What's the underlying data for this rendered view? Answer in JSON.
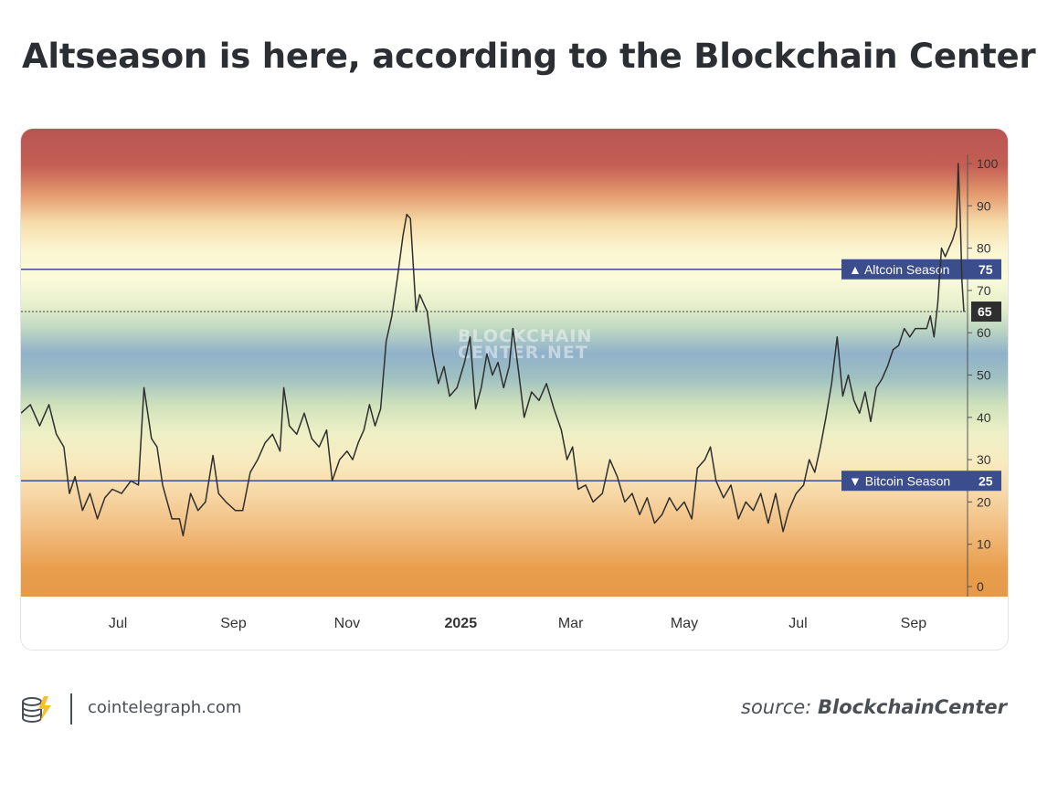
{
  "title": "Altseason is here, according to the Blockchain Center",
  "watermark": [
    "BLOCKCHAIN",
    "CENTER.NET"
  ],
  "footer": {
    "site": "cointelegraph.com",
    "source_prefix": "source:",
    "source_name": "BlockchainCenter"
  },
  "colors": {
    "line": "#2f2f2f",
    "threshold": "#3b4d8c",
    "label_bg": "#3b4d8c",
    "current_label_bg": "#2f2f2f"
  },
  "chart_data": {
    "type": "line",
    "title": "",
    "xlabel": "",
    "ylabel": "",
    "ylim": [
      0,
      100
    ],
    "yticks": [
      0,
      10,
      20,
      30,
      40,
      50,
      60,
      70,
      80,
      90,
      100
    ],
    "x_ticks": [
      {
        "label": "Jul",
        "x": "2024-07-01"
      },
      {
        "label": "Sep",
        "x": "2024-09-01"
      },
      {
        "label": "Nov",
        "x": "2024-11-01"
      },
      {
        "label": "2025",
        "x": "2025-01-01",
        "bold": true
      },
      {
        "label": "Mar",
        "x": "2025-03-01"
      },
      {
        "label": "May",
        "x": "2025-05-01"
      },
      {
        "label": "Jul",
        "x": "2025-07-01"
      },
      {
        "label": "Sep",
        "x": "2025-09-01"
      }
    ],
    "thresholds": [
      {
        "label": "▲ Altcoin Season",
        "value": 75
      },
      {
        "label": "▼ Bitcoin Season",
        "value": 25
      }
    ],
    "current": {
      "value": 65,
      "label": "65"
    },
    "legend": "none",
    "grid": false,
    "series": [
      {
        "points": [
          [
            "2024-05-10",
            41
          ],
          [
            "2024-05-15",
            43
          ],
          [
            "2024-05-20",
            38
          ],
          [
            "2024-05-25",
            43
          ],
          [
            "2024-05-29",
            36
          ],
          [
            "2024-06-02",
            33
          ],
          [
            "2024-06-05",
            22
          ],
          [
            "2024-06-08",
            26
          ],
          [
            "2024-06-12",
            18
          ],
          [
            "2024-06-16",
            22
          ],
          [
            "2024-06-20",
            16
          ],
          [
            "2024-06-24",
            21
          ],
          [
            "2024-06-28",
            23
          ],
          [
            "2024-07-03",
            22
          ],
          [
            "2024-07-08",
            25
          ],
          [
            "2024-07-12",
            24
          ],
          [
            "2024-07-15",
            47
          ],
          [
            "2024-07-19",
            35
          ],
          [
            "2024-07-22",
            33
          ],
          [
            "2024-07-25",
            24
          ],
          [
            "2024-07-30",
            16
          ],
          [
            "2024-08-03",
            16
          ],
          [
            "2024-08-05",
            12
          ],
          [
            "2024-08-09",
            22
          ],
          [
            "2024-08-13",
            18
          ],
          [
            "2024-08-17",
            20
          ],
          [
            "2024-08-21",
            31
          ],
          [
            "2024-08-24",
            22
          ],
          [
            "2024-08-28",
            20
          ],
          [
            "2024-09-02",
            18
          ],
          [
            "2024-09-06",
            18
          ],
          [
            "2024-09-10",
            27
          ],
          [
            "2024-09-14",
            30
          ],
          [
            "2024-09-18",
            34
          ],
          [
            "2024-09-22",
            36
          ],
          [
            "2024-09-26",
            32
          ],
          [
            "2024-09-28",
            47
          ],
          [
            "2024-10-01",
            38
          ],
          [
            "2024-10-05",
            36
          ],
          [
            "2024-10-09",
            41
          ],
          [
            "2024-10-13",
            35
          ],
          [
            "2024-10-17",
            33
          ],
          [
            "2024-10-21",
            37
          ],
          [
            "2024-10-24",
            25
          ],
          [
            "2024-10-28",
            30
          ],
          [
            "2024-11-01",
            32
          ],
          [
            "2024-11-04",
            30
          ],
          [
            "2024-11-07",
            34
          ],
          [
            "2024-11-10",
            37
          ],
          [
            "2024-11-13",
            43
          ],
          [
            "2024-11-16",
            38
          ],
          [
            "2024-11-19",
            42
          ],
          [
            "2024-11-22",
            58
          ],
          [
            "2024-11-25",
            64
          ],
          [
            "2024-11-28",
            73
          ],
          [
            "2024-12-01",
            83
          ],
          [
            "2024-12-03",
            88
          ],
          [
            "2024-12-05",
            87
          ],
          [
            "2024-12-08",
            65
          ],
          [
            "2024-12-10",
            69
          ],
          [
            "2024-12-14",
            65
          ],
          [
            "2024-12-17",
            55
          ],
          [
            "2024-12-20",
            48
          ],
          [
            "2024-12-23",
            52
          ],
          [
            "2024-12-26",
            45
          ],
          [
            "2024-12-30",
            47
          ],
          [
            "2025-01-03",
            53
          ],
          [
            "2025-01-06",
            59
          ],
          [
            "2025-01-09",
            42
          ],
          [
            "2025-01-12",
            47
          ],
          [
            "2025-01-15",
            55
          ],
          [
            "2025-01-18",
            50
          ],
          [
            "2025-01-21",
            53
          ],
          [
            "2025-01-24",
            47
          ],
          [
            "2025-01-27",
            52
          ],
          [
            "2025-01-29",
            61
          ],
          [
            "2025-02-01",
            51
          ],
          [
            "2025-02-04",
            40
          ],
          [
            "2025-02-08",
            46
          ],
          [
            "2025-02-12",
            44
          ],
          [
            "2025-02-16",
            48
          ],
          [
            "2025-02-20",
            42
          ],
          [
            "2025-02-24",
            37
          ],
          [
            "2025-02-27",
            30
          ],
          [
            "2025-03-02",
            33
          ],
          [
            "2025-03-05",
            23
          ],
          [
            "2025-03-09",
            24
          ],
          [
            "2025-03-13",
            20
          ],
          [
            "2025-03-18",
            22
          ],
          [
            "2025-03-22",
            30
          ],
          [
            "2025-03-26",
            26
          ],
          [
            "2025-03-30",
            20
          ],
          [
            "2025-04-03",
            22
          ],
          [
            "2025-04-07",
            17
          ],
          [
            "2025-04-11",
            21
          ],
          [
            "2025-04-15",
            15
          ],
          [
            "2025-04-19",
            17
          ],
          [
            "2025-04-23",
            21
          ],
          [
            "2025-04-27",
            18
          ],
          [
            "2025-05-01",
            20
          ],
          [
            "2025-05-05",
            16
          ],
          [
            "2025-05-08",
            28
          ],
          [
            "2025-05-12",
            30
          ],
          [
            "2025-05-15",
            33
          ],
          [
            "2025-05-18",
            25
          ],
          [
            "2025-05-22",
            21
          ],
          [
            "2025-05-26",
            24
          ],
          [
            "2025-05-30",
            16
          ],
          [
            "2025-06-03",
            20
          ],
          [
            "2025-06-07",
            18
          ],
          [
            "2025-06-11",
            22
          ],
          [
            "2025-06-15",
            15
          ],
          [
            "2025-06-19",
            22
          ],
          [
            "2025-06-23",
            13
          ],
          [
            "2025-06-26",
            18
          ],
          [
            "2025-06-30",
            22
          ],
          [
            "2025-07-04",
            24
          ],
          [
            "2025-07-07",
            30
          ],
          [
            "2025-07-10",
            27
          ],
          [
            "2025-07-13",
            33
          ],
          [
            "2025-07-16",
            40
          ],
          [
            "2025-07-19",
            48
          ],
          [
            "2025-07-22",
            59
          ],
          [
            "2025-07-25",
            45
          ],
          [
            "2025-07-28",
            50
          ],
          [
            "2025-07-31",
            44
          ],
          [
            "2025-08-03",
            41
          ],
          [
            "2025-08-06",
            46
          ],
          [
            "2025-08-09",
            39
          ],
          [
            "2025-08-12",
            47
          ],
          [
            "2025-08-15",
            49
          ],
          [
            "2025-08-18",
            52
          ],
          [
            "2025-08-21",
            56
          ],
          [
            "2025-08-24",
            57
          ],
          [
            "2025-08-27",
            61
          ],
          [
            "2025-08-30",
            59
          ],
          [
            "2025-09-02",
            61
          ],
          [
            "2025-09-05",
            61
          ],
          [
            "2025-09-08",
            61
          ],
          [
            "2025-09-10",
            64
          ],
          [
            "2025-09-12",
            59
          ],
          [
            "2025-09-14",
            67
          ],
          [
            "2025-09-16",
            80
          ],
          [
            "2025-09-18",
            78
          ],
          [
            "2025-09-20",
            80
          ],
          [
            "2025-09-22",
            82
          ],
          [
            "2025-09-24",
            85
          ],
          [
            "2025-09-25",
            100
          ],
          [
            "2025-09-26",
            88
          ],
          [
            "2025-09-27",
            72
          ],
          [
            "2025-09-28",
            65
          ]
        ]
      }
    ]
  }
}
